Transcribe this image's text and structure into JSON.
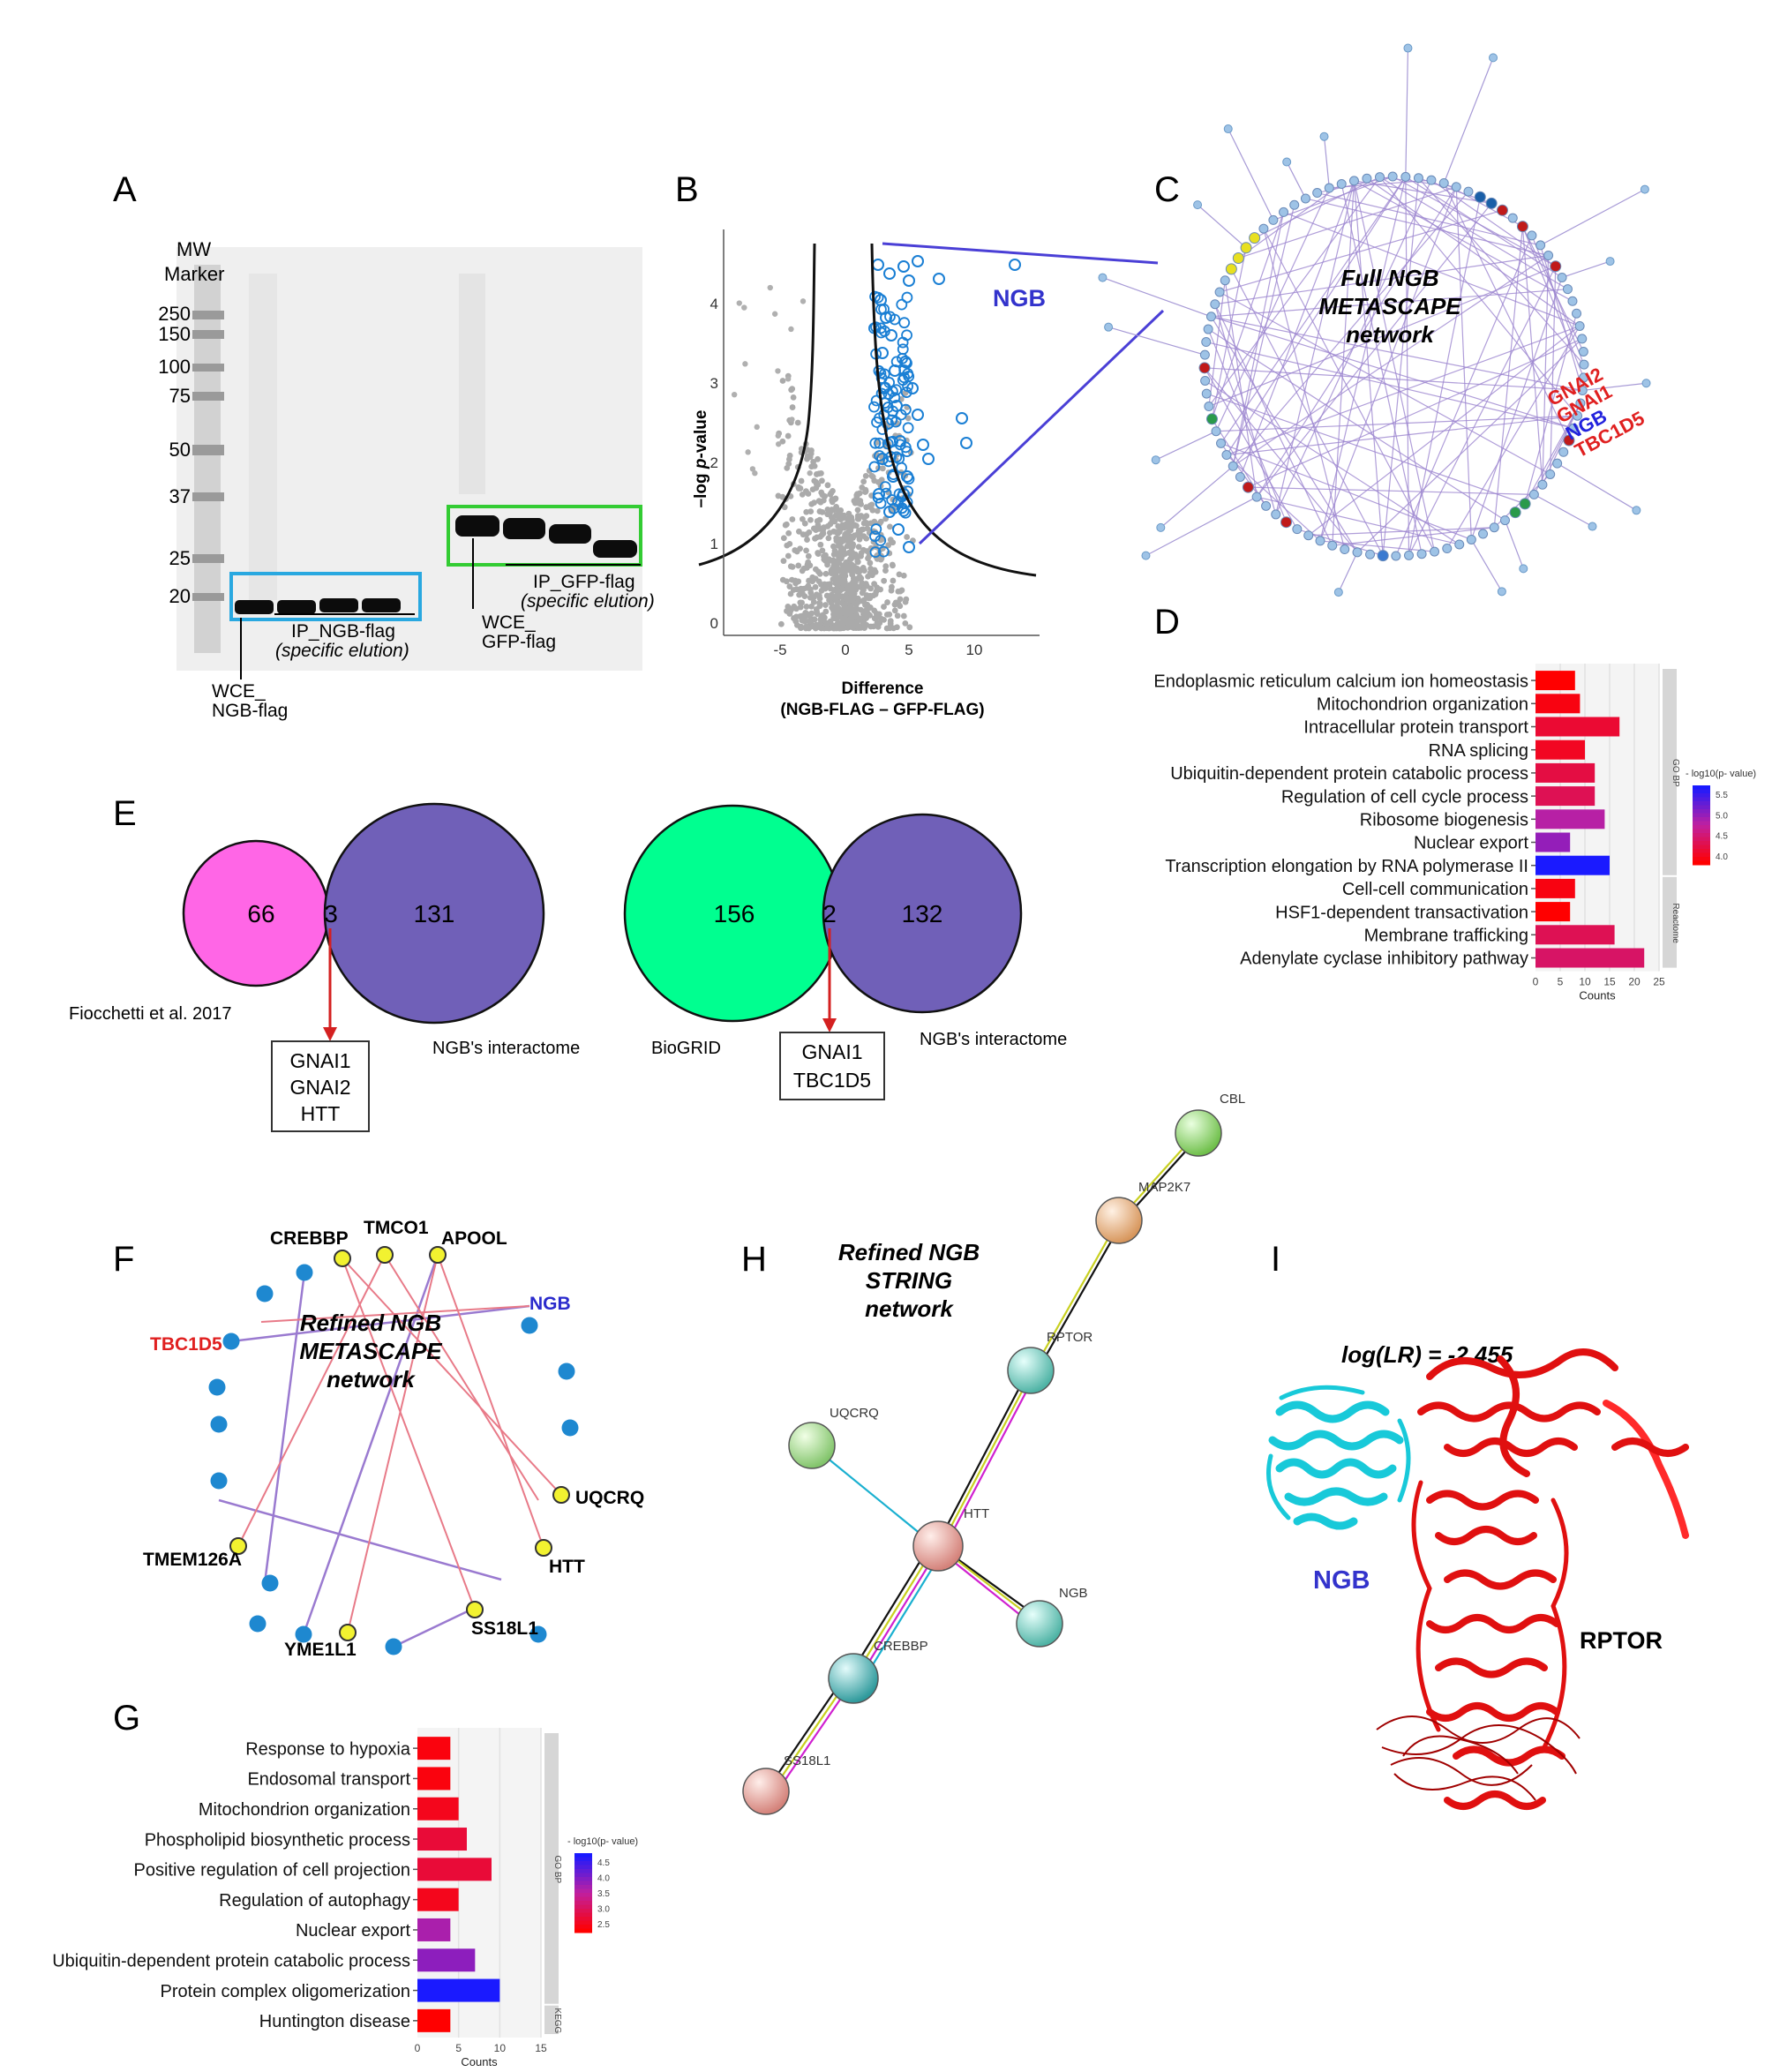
{
  "panel_letters": [
    "A",
    "B",
    "C",
    "D",
    "E",
    "F",
    "G",
    "H",
    "I"
  ],
  "panel_a": {
    "marker_header": [
      "MW",
      "Marker"
    ],
    "ladder": [
      "250",
      "150",
      "100",
      "75",
      "50",
      "37",
      "25",
      "20"
    ],
    "ip_ngb": "IP_NGB-flag",
    "ip_ngb_sub": "(specific elution)",
    "ip_gfp": "IP_GFP-flag",
    "ip_gfp_sub": "(specific elution)",
    "wce_gfp": [
      "WCE_",
      "GFP-flag"
    ],
    "wce_ngb": [
      "WCE_",
      "NGB-flag"
    ],
    "colors": {
      "ngb_box": "#29a8e0",
      "gfp_box": "#33cc33"
    }
  },
  "panel_b": {
    "highlight": "NGB",
    "ylabel_prefix": "–log ",
    "ylabel_italic": "p",
    "ylabel_suffix": "-value",
    "xlabel": [
      "Difference",
      "(NGB-FLAG – GFP-FLAG)"
    ],
    "xticks": [
      "-5",
      "0",
      "5",
      "10"
    ],
    "yticks": [
      "0",
      "1",
      "2",
      "3",
      "4"
    ]
  },
  "panel_c": {
    "title": [
      "Full NGB",
      "METASCAPE",
      "network"
    ],
    "labels": [
      {
        "text": "GNAI2",
        "color": "#e02020"
      },
      {
        "text": "GNAI1",
        "color": "#e02020"
      },
      {
        "text": "NGB",
        "color": "#2222dd"
      },
      {
        "text": "TBC1D5",
        "color": "#e02020"
      }
    ]
  },
  "chart_data": [
    {
      "type": "bar",
      "panel": "D",
      "orientation": "horizontal",
      "categories": [
        "Endoplasmic reticulum calcium ion homeostasis",
        "Mitochondrion organization",
        "Intracellular protein transport",
        "RNA splicing",
        "Ubiquitin-dependent protein catabolic process",
        "Regulation of cell cycle process",
        "Ribosome biogenesis",
        "Nuclear export",
        "Transcription elongation by RNA polymerase II",
        "Cell-cell communication",
        "HSF1-dependent transactivation",
        "Membrane trafficking",
        "Adenylate cyclase inhibitory pathway"
      ],
      "values": [
        8,
        9,
        17,
        10,
        12,
        12,
        14,
        7,
        15,
        8,
        7,
        16,
        22
      ],
      "neglog10p": [
        4.0,
        4.1,
        4.3,
        4.2,
        4.4,
        4.5,
        5.0,
        5.2,
        5.9,
        4.1,
        4.0,
        4.5,
        4.6
      ],
      "groups": [
        {
          "name": "GO BP",
          "count": 9
        },
        {
          "name": "Reactome",
          "count": 4
        }
      ],
      "xlabel": "Counts",
      "xticks": [
        "0",
        "5",
        "10",
        "15",
        "20",
        "25"
      ],
      "xlim": [
        0,
        25
      ],
      "legend_title": "- log10(p- value)",
      "legend_ticks": [
        "5.5",
        "5.0",
        "4.5",
        "4.0"
      ],
      "color_low": "#ff0000",
      "color_high": "#1a1aff"
    },
    {
      "type": "bar",
      "panel": "G",
      "orientation": "horizontal",
      "categories": [
        "Response to hypoxia",
        "Endosomal transport",
        "Mitochondrion organization",
        "Phospholipid biosynthetic process",
        "Positive regulation of cell projection",
        "Regulation of autophagy",
        "Nuclear export",
        "Ubiquitin-dependent protein catabolic process",
        "Protein complex oligomerization",
        "Huntington disease"
      ],
      "values": [
        4,
        4,
        5,
        6,
        9,
        5,
        4,
        7,
        10,
        4
      ],
      "neglog10p": [
        2.7,
        2.7,
        2.8,
        3.0,
        3.0,
        2.8,
        3.9,
        4.1,
        4.9,
        2.6
      ],
      "groups": [
        {
          "name": "GO BP",
          "count": 9
        },
        {
          "name": "KEGG",
          "count": 1
        }
      ],
      "xlabel": "Counts",
      "xticks": [
        "0",
        "5",
        "10",
        "15"
      ],
      "xlim": [
        0,
        15
      ],
      "legend_title": "- log10(p- value)",
      "legend_ticks": [
        "4.5",
        "4.0",
        "3.5",
        "3.0",
        "2.5"
      ],
      "color_low": "#ff0000",
      "color_high": "#1a1aff"
    }
  ],
  "panel_e": {
    "venn1": {
      "left": "66",
      "mid": "3",
      "right": "131",
      "left_label": "Fiocchetti et al. 2017",
      "right_label": "NGB's interactome",
      "genes": [
        "GNAI1",
        "GNAI2",
        "HTT"
      ]
    },
    "venn2": {
      "left": "156",
      "mid": "2",
      "right": "132",
      "left_label": "BioGRID",
      "right_label": "NGB's interactome",
      "genes": [
        "GNAI1",
        "TBC1D5"
      ]
    },
    "colors": {
      "pink": "#ff66e6",
      "purple": "#7060b8",
      "green": "#00ff90"
    }
  },
  "panel_f": {
    "title": [
      "Refined NGB",
      "METASCAPE",
      "network"
    ],
    "labels": [
      {
        "text": "CREBBP",
        "color": "#000000"
      },
      {
        "text": "TMCO1",
        "color": "#000000"
      },
      {
        "text": "APOOL",
        "color": "#000000"
      },
      {
        "text": "NGB",
        "color": "#2a2acc"
      },
      {
        "text": "TBC1D5",
        "color": "#e02020"
      },
      {
        "text": "UQCRQ",
        "color": "#000000"
      },
      {
        "text": "HTT",
        "color": "#000000"
      },
      {
        "text": "TMEM126A",
        "color": "#000000"
      },
      {
        "text": "SS18L1",
        "color": "#000000"
      },
      {
        "text": "YME1L1",
        "color": "#000000"
      }
    ]
  },
  "panel_h": {
    "title": [
      "Refined NGB",
      "STRING",
      "network"
    ],
    "nodes": [
      "CBL",
      "MAP2K7",
      "RPTOR",
      "UQCRQ",
      "HTT",
      "NGB",
      "CREBBP",
      "SS18L1"
    ]
  },
  "panel_i": {
    "score": "log(LR) = -2.455",
    "ngb": "NGB",
    "rptor": "RPTOR"
  }
}
